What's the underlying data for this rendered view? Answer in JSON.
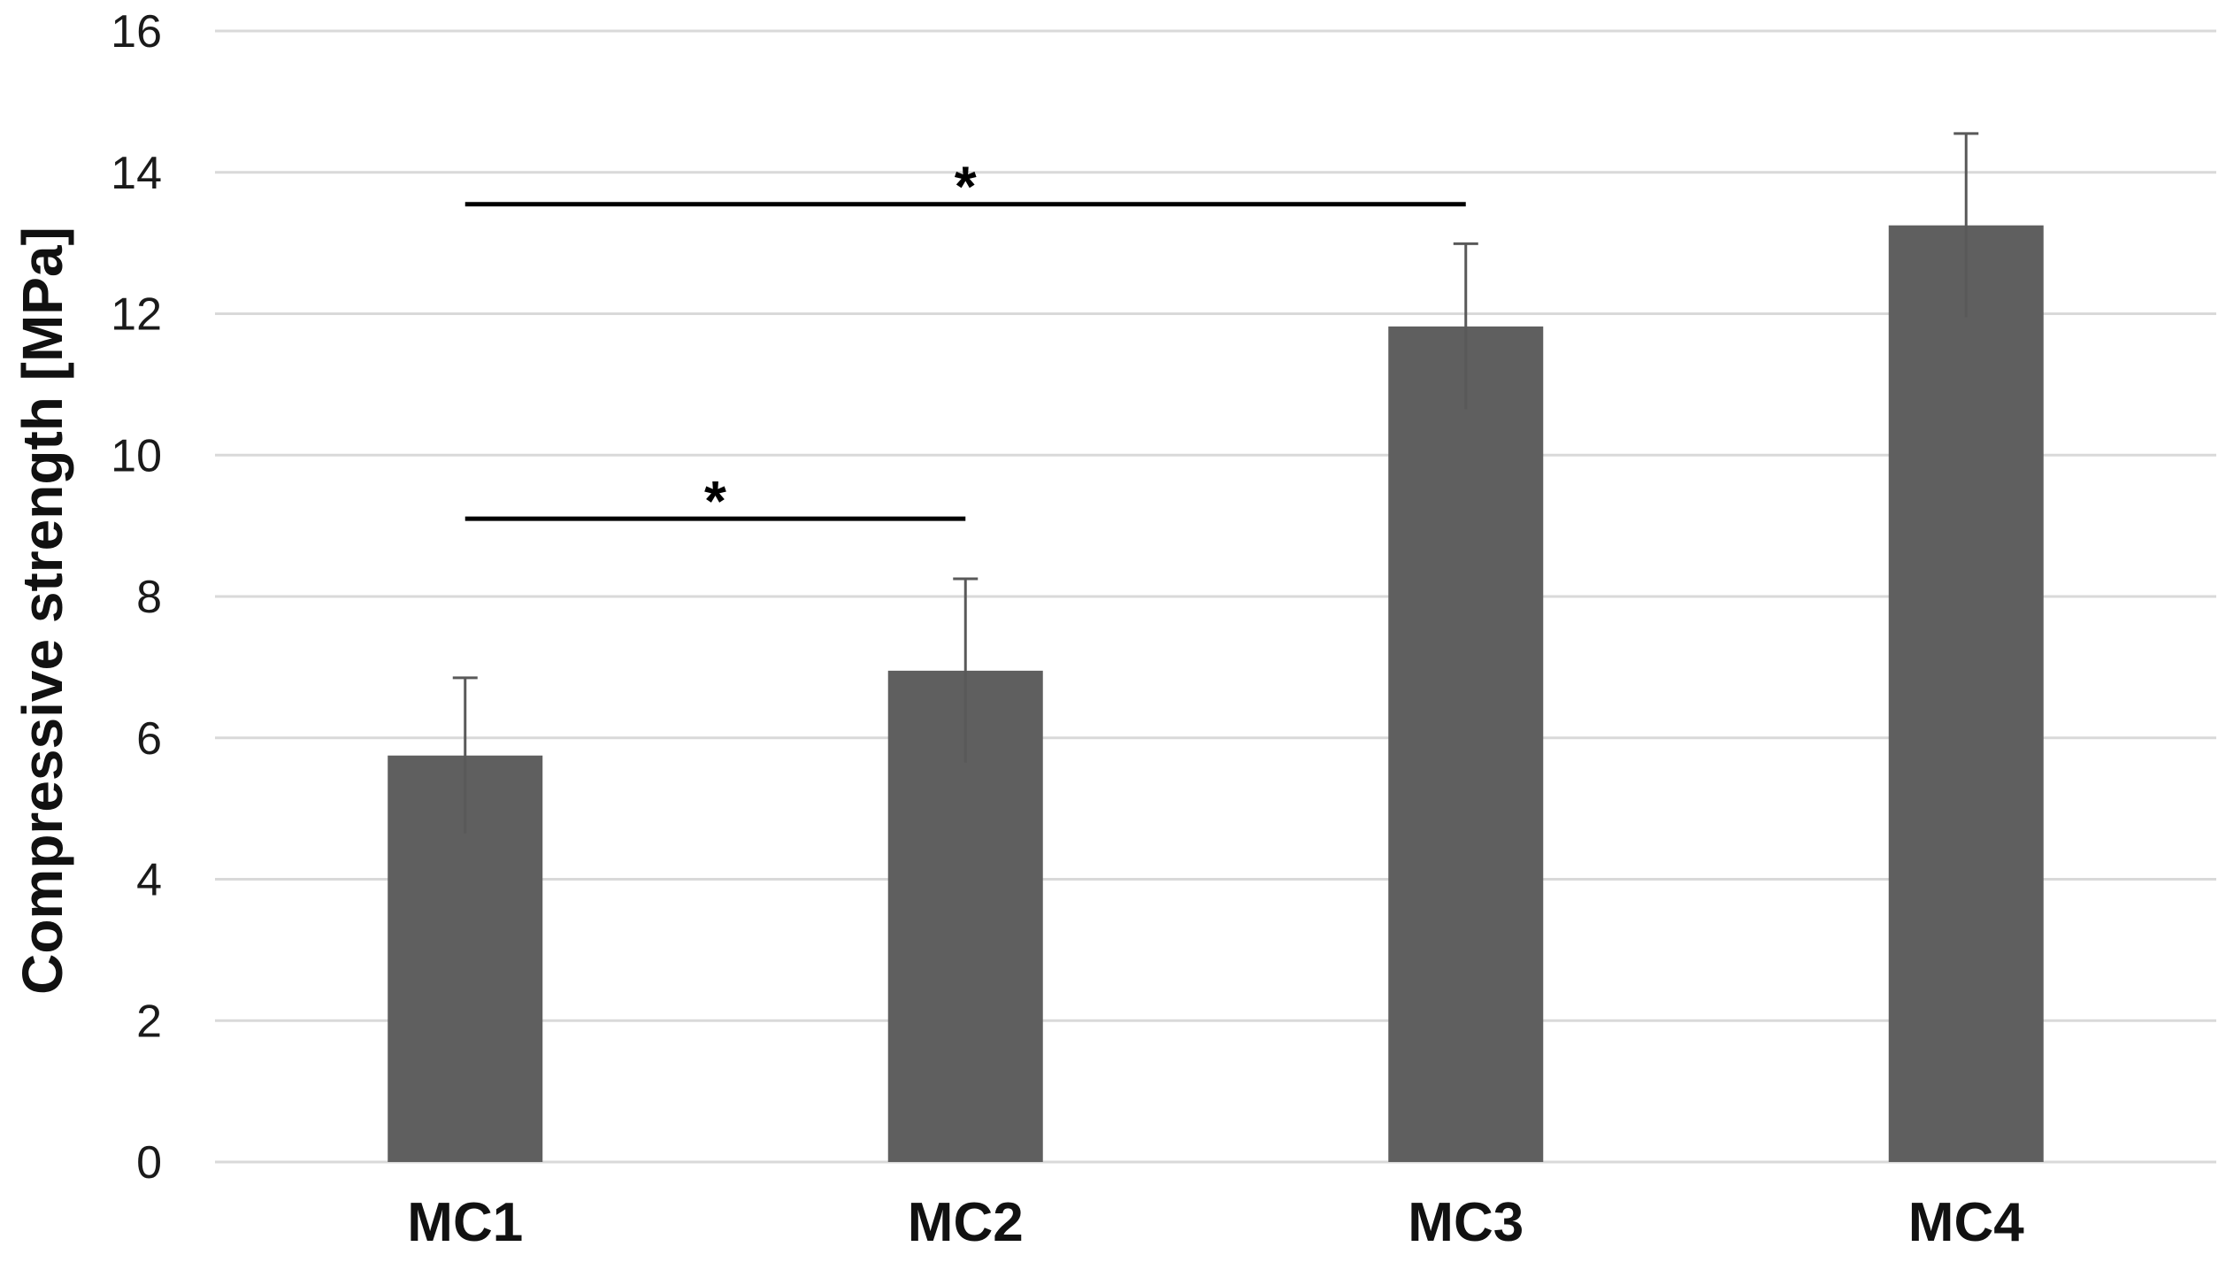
{
  "chart_data": {
    "type": "bar",
    "title": "",
    "xlabel": "",
    "ylabel": "Compressive strength [MPa]",
    "ylim": [
      0,
      16
    ],
    "yticks": [
      0,
      2,
      4,
      6,
      8,
      10,
      12,
      14,
      16
    ],
    "grid": true,
    "categories": [
      "MC1",
      "MC2",
      "MC3",
      "MC4"
    ],
    "values": [
      5.75,
      6.95,
      11.82,
      13.25
    ],
    "errors": [
      1.1,
      1.3,
      1.17,
      1.3
    ],
    "bar_color": "#5f5f5f",
    "error_color": "#595959",
    "grid_color": "#d9d9d9",
    "significance": [
      {
        "from": "MC1",
        "to": "MC2",
        "y": 9.1,
        "label": "*"
      },
      {
        "from": "MC1",
        "to": "MC3",
        "y": 13.55,
        "label": "*"
      }
    ]
  }
}
